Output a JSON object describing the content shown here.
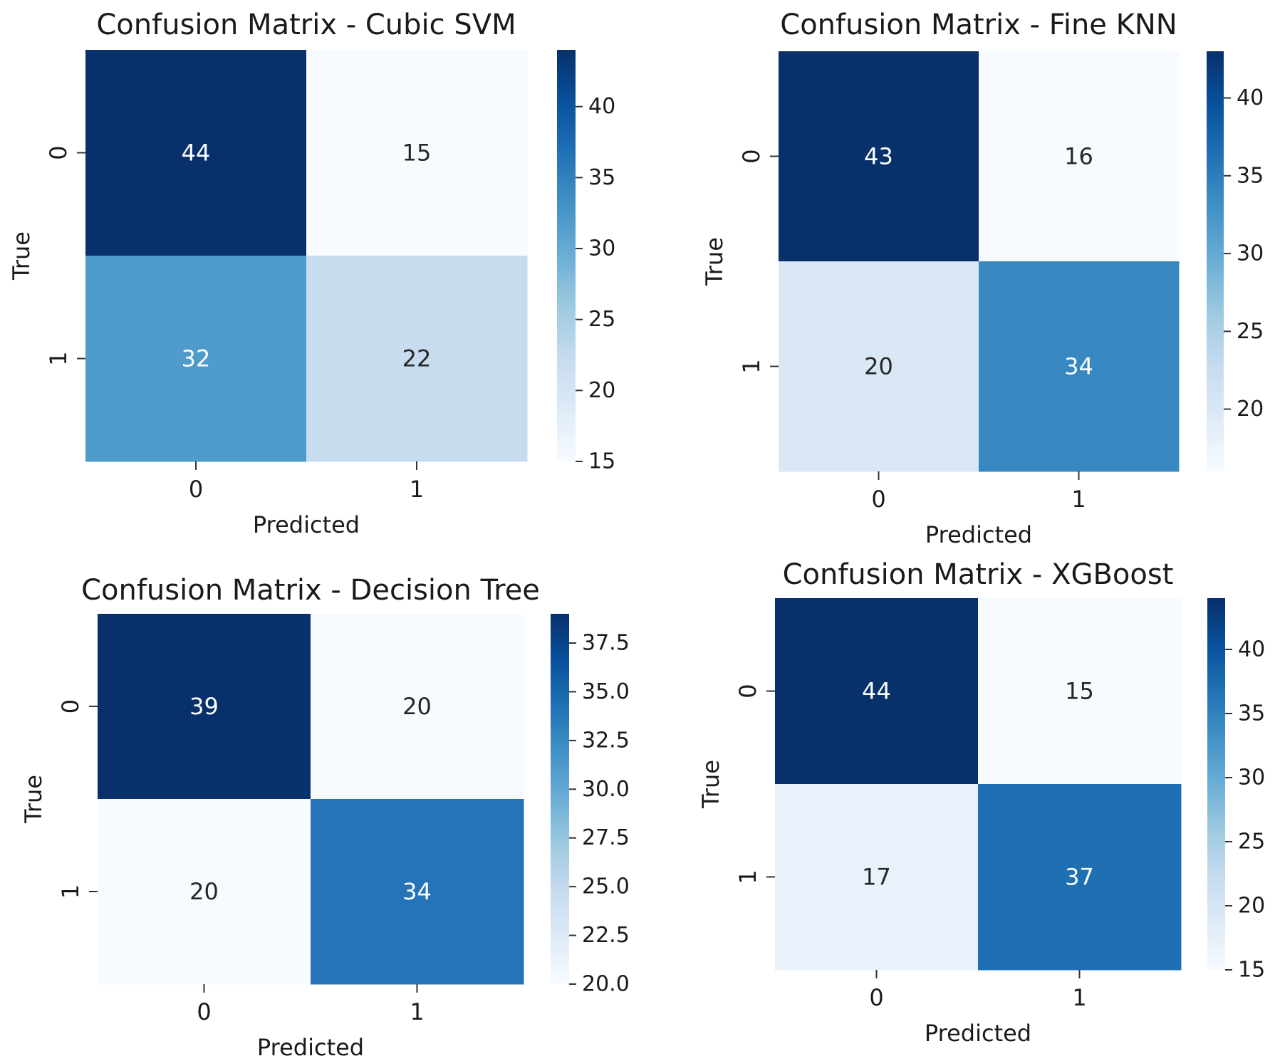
{
  "chart_data": [
    {
      "type": "heatmap",
      "title": "Confusion Matrix - Cubic SVM",
      "xlabel": "Predicted",
      "ylabel": "True",
      "x_categories": [
        "0",
        "1"
      ],
      "y_categories": [
        "0",
        "1"
      ],
      "values": [
        [
          44,
          15
        ],
        [
          32,
          22
        ]
      ],
      "colormap": "Blues",
      "colorbar": {
        "range": [
          15,
          44
        ],
        "ticks": [
          "15",
          "20",
          "25",
          "30",
          "35",
          "40"
        ]
      }
    },
    {
      "type": "heatmap",
      "title": "Confusion Matrix - Fine KNN",
      "xlabel": "Predicted",
      "ylabel": "True",
      "x_categories": [
        "0",
        "1"
      ],
      "y_categories": [
        "0",
        "1"
      ],
      "values": [
        [
          43,
          16
        ],
        [
          20,
          34
        ]
      ],
      "colormap": "Blues",
      "colorbar": {
        "range": [
          16,
          43
        ],
        "ticks": [
          "20",
          "25",
          "30",
          "35",
          "40"
        ]
      }
    },
    {
      "type": "heatmap",
      "title": "Confusion Matrix - Decision Tree",
      "xlabel": "Predicted",
      "ylabel": "True",
      "x_categories": [
        "0",
        "1"
      ],
      "y_categories": [
        "0",
        "1"
      ],
      "values": [
        [
          39,
          20
        ],
        [
          20,
          34
        ]
      ],
      "colormap": "Blues",
      "colorbar": {
        "range": [
          20,
          39
        ],
        "ticks": [
          "20.0",
          "22.5",
          "25.0",
          "27.5",
          "30.0",
          "32.5",
          "35.0",
          "37.5"
        ]
      }
    },
    {
      "type": "heatmap",
      "title": "Confusion Matrix - XGBoost",
      "xlabel": "Predicted",
      "ylabel": "True",
      "x_categories": [
        "0",
        "1"
      ],
      "y_categories": [
        "0",
        "1"
      ],
      "values": [
        [
          44,
          15
        ],
        [
          17,
          37
        ]
      ],
      "colormap": "Blues",
      "colorbar": {
        "range": [
          15,
          44
        ],
        "ticks": [
          "15",
          "20",
          "25",
          "30",
          "35",
          "40"
        ]
      }
    }
  ]
}
